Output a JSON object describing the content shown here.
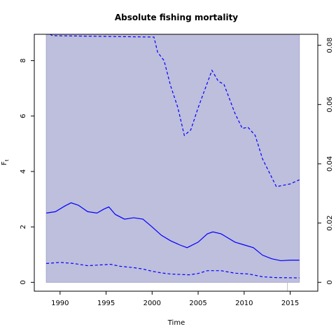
{
  "chart_data": {
    "type": "line",
    "title": "Absolute fishing mortality",
    "xlabel": "Time",
    "ylabel": "F",
    "ylabel_subscript": "t",
    "xlim": [
      1987.2,
      2018.0
    ],
    "ylim": [
      -0.32,
      8.95
    ],
    "y2lim": [
      -0.003,
      0.0837
    ],
    "x_ticks": [
      1990,
      1995,
      2000,
      2005,
      2010,
      2015
    ],
    "x_tick_labels": [
      "1990",
      "1995",
      "2000",
      "2005",
      "2010",
      "2015"
    ],
    "y_ticks": [
      0,
      2,
      4,
      6,
      8
    ],
    "y_tick_labels": [
      "0",
      "2",
      "4",
      "6",
      "8"
    ],
    "y2_ticks": [
      0,
      0.02,
      0.04,
      0.06,
      0.08
    ],
    "y2_tick_labels": [
      "0",
      "0.02",
      "0.04",
      "0.06",
      "0.08"
    ],
    "grid": false,
    "legend": "none",
    "colors": {
      "line": "#0000ff",
      "band": "#bebedd",
      "band_edge": "#a8a8cf",
      "vline": "#c0c0c0"
    },
    "band": {
      "x_start": 1988.5,
      "x_end": 2016.0
    },
    "vline_x": 2014.7,
    "series": [
      {
        "style": "solid",
        "x": [
          1988.5,
          1989.5,
          1990.5,
          1991.2,
          1992.0,
          1993.0,
          1994.0,
          1994.8,
          1995.3,
          1996.0,
          1997.0,
          1998.0,
          1999.0,
          2000.0,
          2001.0,
          2002.0,
          2003.0,
          2003.8,
          2005.0,
          2006.0,
          2006.6,
          2007.5,
          2008.0,
          2009.0,
          2010.0,
          2011.0,
          2012.0,
          2013.0,
          2014.0,
          2015.0,
          2016.0
        ],
        "y": [
          2.5,
          2.55,
          2.75,
          2.87,
          2.78,
          2.55,
          2.5,
          2.65,
          2.72,
          2.45,
          2.28,
          2.33,
          2.28,
          2.0,
          1.7,
          1.5,
          1.35,
          1.25,
          1.45,
          1.75,
          1.82,
          1.75,
          1.65,
          1.45,
          1.35,
          1.25,
          0.98,
          0.85,
          0.78,
          0.8,
          0.8
        ]
      },
      {
        "style": "dashed",
        "x": [
          1988.5,
          1990.0,
          1991.5,
          1993.0,
          1994.5,
          1995.5,
          1996.5,
          1998.0,
          1999.0,
          2000.0,
          2001.0,
          2002.0,
          2004.0,
          2005.0,
          2006.0,
          2007.5,
          2009.0,
          2010.5,
          2012.0,
          2013.5,
          2016.0
        ],
        "y": [
          0.68,
          0.72,
          0.68,
          0.6,
          0.63,
          0.65,
          0.58,
          0.53,
          0.48,
          0.4,
          0.34,
          0.3,
          0.27,
          0.32,
          0.42,
          0.42,
          0.33,
          0.3,
          0.2,
          0.17,
          0.16
        ]
      },
      {
        "style": "dashed",
        "x": [
          1988.9,
          1989.2,
          2000.2,
          2000.6,
          2001.3,
          2002.0,
          2002.8,
          2003.5,
          2004.2,
          2005.0,
          2006.0,
          2006.5,
          2007.2,
          2007.8,
          2009.0,
          2009.8,
          2010.4,
          2011.2,
          2012.0,
          2013.5,
          2014.2,
          2015.0,
          2016.0
        ],
        "y": [
          8.95,
          8.9,
          8.85,
          8.3,
          8.0,
          7.1,
          6.3,
          5.3,
          5.5,
          6.3,
          7.2,
          7.65,
          7.25,
          7.15,
          6.1,
          5.55,
          5.6,
          5.3,
          4.45,
          3.45,
          3.5,
          3.55,
          3.7
        ]
      }
    ]
  }
}
